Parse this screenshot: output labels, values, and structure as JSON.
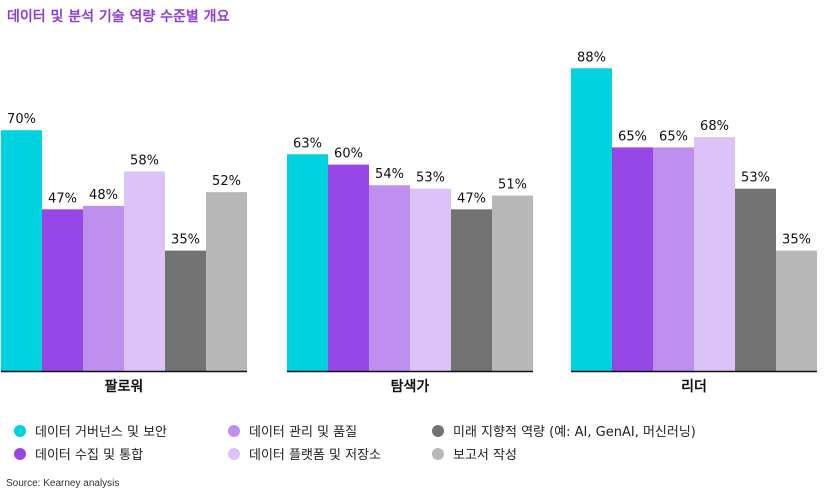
{
  "title": "데이터 및 분석 기술 역량 수준별 개요",
  "source": "Source: Kearney analysis",
  "chart_data": {
    "type": "bar",
    "title": "데이터 및 분석 기술 역량 수준별 개요",
    "categories": [
      "팔로워",
      "탐색가",
      "리더"
    ],
    "series": [
      {
        "name": "데이터 거버넌스 및 보안",
        "color": "#00d2df",
        "values": [
          70,
          63,
          88
        ],
        "labels": [
          "70%",
          "63%",
          "88%"
        ]
      },
      {
        "name": "데이터 수집 및 통합",
        "color": "#9747e6",
        "values": [
          47,
          60,
          65
        ],
        "labels": [
          "47%",
          "60%",
          "65%"
        ]
      },
      {
        "name": "데이터 관리 및 품질",
        "color": "#bf8ff0",
        "values": [
          48,
          54,
          65
        ],
        "labels": [
          "48%",
          "54%",
          "65%"
        ]
      },
      {
        "name": "데이터 플랫폼 및 저장소",
        "color": "#dcc3f7",
        "values": [
          58,
          53,
          68
        ],
        "labels": [
          "58%",
          "53%",
          "68%"
        ]
      },
      {
        "name": "미래 지향적 역량 (예: AI, GenAI, 머신러닝)",
        "color": "#737373",
        "values": [
          35,
          47,
          53
        ],
        "labels": [
          "35%",
          "47%",
          "53%"
        ]
      },
      {
        "name": "보고서 작성",
        "color": "#b8b8b8",
        "values": [
          52,
          51,
          35
        ],
        "labels": [
          "52%",
          "51%",
          "35%"
        ]
      }
    ],
    "ylim": [
      0,
      100
    ],
    "grid": false,
    "legend_position": "bottom"
  }
}
